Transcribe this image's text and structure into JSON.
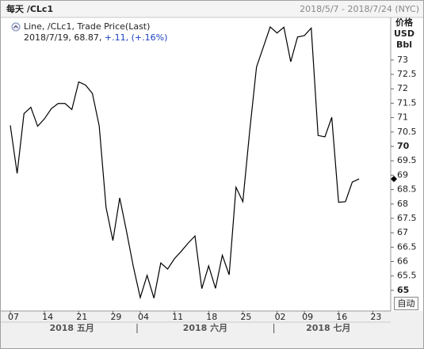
{
  "chart_data": {
    "type": "line",
    "title": "每天 /CLc1",
    "subtitle": "2018/5/7 - 2018/7/24 (NYC)",
    "y_label": [
      "价格",
      "USD",
      "Bbl"
    ],
    "categories": [
      "07",
      null,
      null,
      null,
      null,
      "14",
      null,
      null,
      null,
      null,
      "21",
      null,
      null,
      null,
      null,
      "29",
      null,
      null,
      null,
      "04",
      null,
      null,
      null,
      null,
      "11",
      null,
      null,
      null,
      null,
      "18",
      null,
      null,
      null,
      null,
      "25",
      null,
      null,
      null,
      null,
      "02",
      null,
      null,
      null,
      "09",
      null,
      null,
      null,
      null,
      "16",
      null,
      null,
      null,
      null,
      "23",
      null
    ],
    "month_labels": [
      "2018 五月",
      "2018 六月",
      "2018 七月"
    ],
    "series": [
      {
        "name": "Line, /CLc1, Trade Price(Last)",
        "color": "#000000",
        "values": [
          70.73,
          69.06,
          71.14,
          71.36,
          70.7,
          70.96,
          71.31,
          71.49,
          71.49,
          71.28,
          72.24,
          72.13,
          71.84,
          70.71,
          67.88,
          66.73,
          68.21,
          67.04,
          65.81,
          64.75,
          65.52,
          64.73,
          65.95,
          65.74,
          66.1,
          66.36,
          66.64,
          66.89,
          65.06,
          65.85,
          65.07,
          66.22,
          65.54,
          68.58,
          68.08,
          70.53,
          72.76,
          73.45,
          74.15,
          73.94,
          74.14,
          72.94,
          73.8,
          73.85,
          74.11,
          70.38,
          70.33,
          71.01,
          68.06,
          68.08,
          68.76,
          68.87,
          null,
          null,
          null
        ]
      }
    ],
    "last_quote": {
      "date": "2018/7/19",
      "value": 68.87,
      "change": {
        "value": 0.11,
        "label": "+.11"
      },
      "change_pct": {
        "value": 0.16,
        "label": "(+.16%)"
      }
    },
    "ylim": [
      64.31,
      74.48
    ],
    "yticks": [
      65,
      65.5,
      66,
      66.5,
      67,
      67.5,
      68,
      68.5,
      69,
      69.5,
      70,
      70.5,
      71,
      71.5,
      72,
      72.5,
      73
    ],
    "grid": false,
    "button": "自动"
  }
}
